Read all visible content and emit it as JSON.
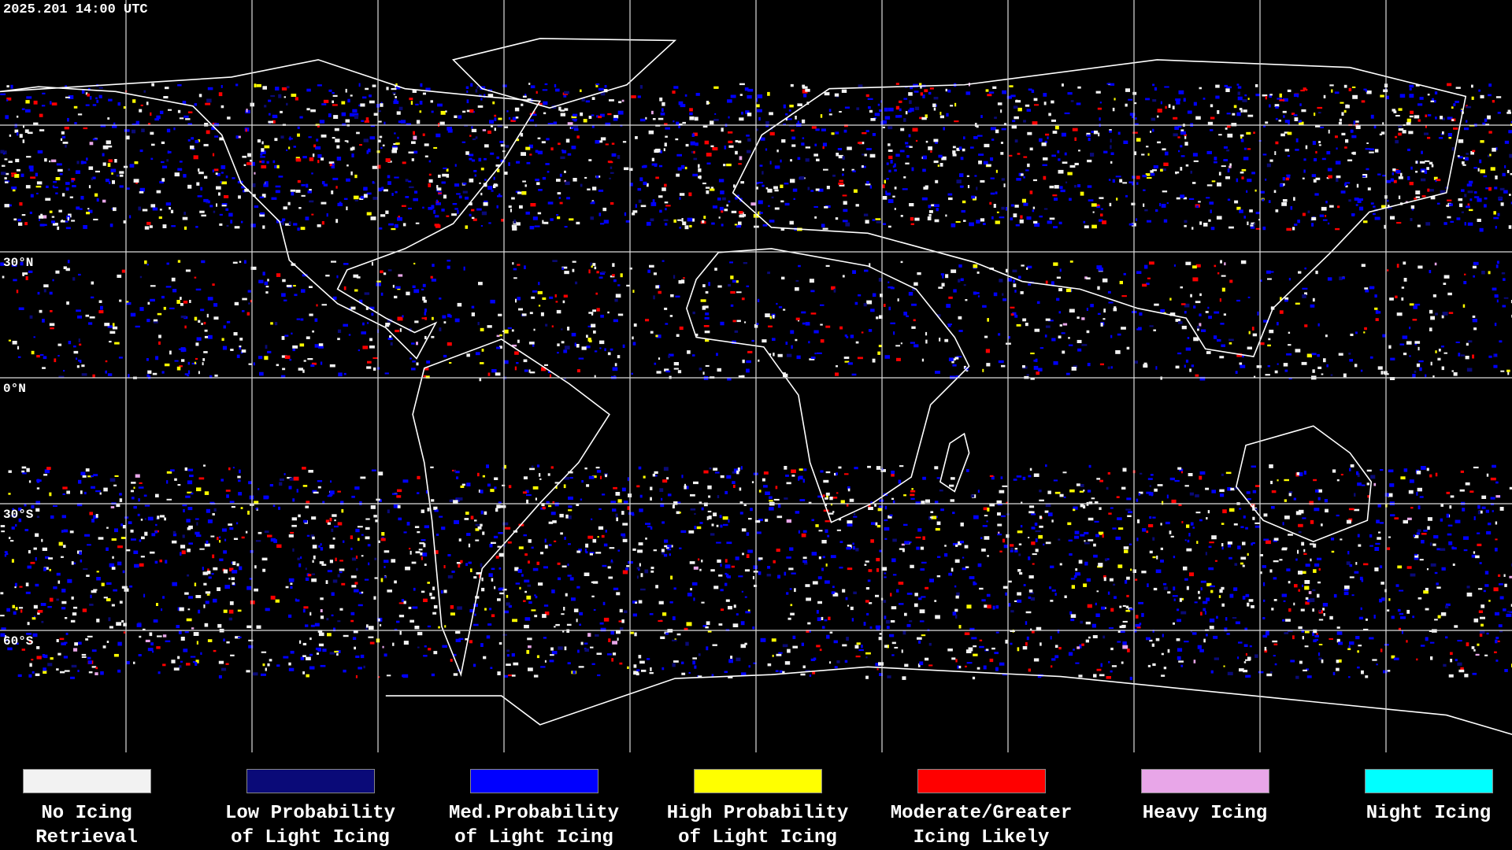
{
  "header": {
    "timestamp": "2025.201 14:00 UTC"
  },
  "map": {
    "latitude_labels": [
      "30°N",
      "0°N",
      "30°S",
      "60°S"
    ]
  },
  "legend": {
    "items": [
      {
        "label_lines": [
          "No Icing",
          "Retrieval"
        ],
        "color": "#f2f2f2"
      },
      {
        "label_lines": [
          "Low Probability",
          "of Light Icing"
        ],
        "color": "#0a0a78"
      },
      {
        "label_lines": [
          "Med.Probability",
          "of Light Icing"
        ],
        "color": "#0000ff"
      },
      {
        "label_lines": [
          "High Probability",
          "of Light Icing"
        ],
        "color": "#ffff00"
      },
      {
        "label_lines": [
          "Moderate/Greater",
          "Icing Likely"
        ],
        "color": "#ff0000"
      },
      {
        "label_lines": [
          "Heavy Icing"
        ],
        "color": "#e8a6e8"
      },
      {
        "label_lines": [
          "Night Icing"
        ],
        "color": "#00ffff"
      }
    ]
  }
}
